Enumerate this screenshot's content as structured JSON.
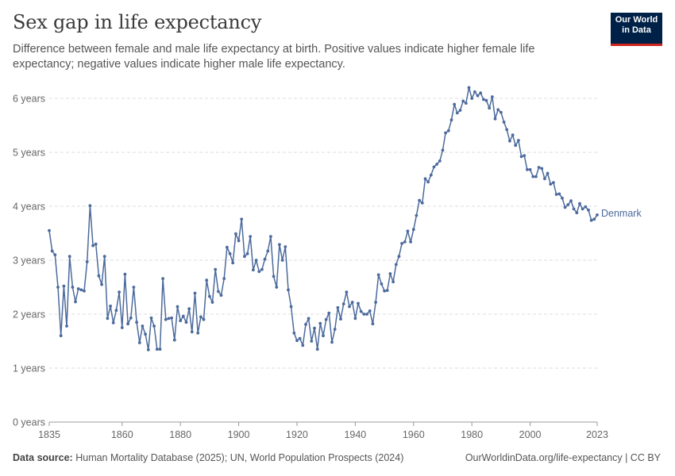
{
  "header": {
    "title": "Sex gap in life expectancy",
    "subtitle": "Difference between female and male life expectancy at birth. Positive values indicate higher female life expectancy; negative values indicate higher male life expectancy.",
    "logo_line1": "Our World",
    "logo_line2": "in Data"
  },
  "footer": {
    "source_label": "Data source:",
    "source_text": "Human Mortality Database (2025); UN, World Population Prospects (2024)",
    "credit": "OurWorldinData.org/life-expectancy | CC BY"
  },
  "colors": {
    "series": "#4c6a9c",
    "logo_bg": "#002147",
    "logo_accent": "#ce261e",
    "grid": "#dddddd",
    "axis_text": "#666666"
  },
  "chart_data": {
    "type": "line",
    "title": "Sex gap in life expectancy",
    "xlabel": "",
    "ylabel": "",
    "xlim": [
      1835,
      2023
    ],
    "ylim": [
      0,
      6
    ],
    "grid": "horizontal dashed",
    "legend": "inline label at line end",
    "x_ticks": [
      1835,
      1860,
      1880,
      1900,
      1920,
      1940,
      1960,
      1980,
      2000,
      2023
    ],
    "y_ticks": [
      {
        "value": 0,
        "label": "0 years"
      },
      {
        "value": 1,
        "label": "1 years"
      },
      {
        "value": 2,
        "label": "2 years"
      },
      {
        "value": 3,
        "label": "3 years"
      },
      {
        "value": 4,
        "label": "4 years"
      },
      {
        "value": 5,
        "label": "5 years"
      },
      {
        "value": 6,
        "label": "6 years"
      }
    ],
    "series": [
      {
        "name": "Denmark",
        "x": [
          1835,
          1836,
          1837,
          1838,
          1839,
          1840,
          1841,
          1842,
          1843,
          1844,
          1845,
          1846,
          1847,
          1848,
          1849,
          1850,
          1851,
          1852,
          1853,
          1854,
          1855,
          1856,
          1857,
          1858,
          1859,
          1860,
          1861,
          1862,
          1863,
          1864,
          1865,
          1866,
          1867,
          1868,
          1869,
          1870,
          1871,
          1872,
          1873,
          1874,
          1875,
          1876,
          1877,
          1878,
          1879,
          1880,
          1881,
          1882,
          1883,
          1884,
          1885,
          1886,
          1887,
          1888,
          1889,
          1890,
          1891,
          1892,
          1893,
          1894,
          1895,
          1896,
          1897,
          1898,
          1899,
          1900,
          1901,
          1902,
          1903,
          1904,
          1905,
          1906,
          1907,
          1908,
          1909,
          1910,
          1911,
          1912,
          1913,
          1914,
          1915,
          1916,
          1917,
          1918,
          1919,
          1920,
          1921,
          1922,
          1923,
          1924,
          1925,
          1926,
          1927,
          1928,
          1929,
          1930,
          1931,
          1932,
          1933,
          1934,
          1935,
          1936,
          1937,
          1938,
          1939,
          1940,
          1941,
          1942,
          1943,
          1944,
          1945,
          1946,
          1947,
          1948,
          1949,
          1950,
          1951,
          1952,
          1953,
          1954,
          1955,
          1956,
          1957,
          1958,
          1959,
          1960,
          1961,
          1962,
          1963,
          1964,
          1965,
          1966,
          1967,
          1968,
          1969,
          1970,
          1971,
          1972,
          1973,
          1974,
          1975,
          1976,
          1977,
          1978,
          1979,
          1980,
          1981,
          1982,
          1983,
          1984,
          1985,
          1986,
          1987,
          1988,
          1989,
          1990,
          1991,
          1992,
          1993,
          1994,
          1995,
          1996,
          1997,
          1998,
          1999,
          2000,
          2001,
          2002,
          2003,
          2004,
          2005,
          2006,
          2007,
          2008,
          2009,
          2010,
          2011,
          2012,
          2013,
          2014,
          2015,
          2016,
          2017,
          2018,
          2019,
          2020,
          2021,
          2022,
          2023
        ],
        "values": [
          3.55,
          3.17,
          3.1,
          2.5,
          1.6,
          2.52,
          1.78,
          3.07,
          2.5,
          2.23,
          2.47,
          2.45,
          2.43,
          2.97,
          4.01,
          3.27,
          3.3,
          2.71,
          2.55,
          3.07,
          1.92,
          2.15,
          1.84,
          2.07,
          2.41,
          1.75,
          2.74,
          1.82,
          1.93,
          2.5,
          1.85,
          1.47,
          1.78,
          1.63,
          1.34,
          1.93,
          1.78,
          1.35,
          1.35,
          2.66,
          1.9,
          1.92,
          1.93,
          1.52,
          2.14,
          1.88,
          1.96,
          1.85,
          2.1,
          1.67,
          2.39,
          1.65,
          1.95,
          1.9,
          2.63,
          2.33,
          2.22,
          2.83,
          2.42,
          2.35,
          2.66,
          3.24,
          3.12,
          2.95,
          3.49,
          3.36,
          3.76,
          3.07,
          3.12,
          3.44,
          2.82,
          3.0,
          2.79,
          2.83,
          3.02,
          3.17,
          3.44,
          2.7,
          2.5,
          3.29,
          3.0,
          3.25,
          2.45,
          2.14,
          1.65,
          1.51,
          1.55,
          1.42,
          1.81,
          1.92,
          1.5,
          1.74,
          1.35,
          1.83,
          1.6,
          1.9,
          2.02,
          1.48,
          1.72,
          2.12,
          1.91,
          2.19,
          2.41,
          2.14,
          2.22,
          1.92,
          2.2,
          2.05,
          2.0,
          2.0,
          2.06,
          1.82,
          2.22,
          2.73,
          2.56,
          2.43,
          2.44,
          2.75,
          2.6,
          2.92,
          3.07,
          3.31,
          3.34,
          3.54,
          3.34,
          3.57,
          3.83,
          4.11,
          4.06,
          4.51,
          4.45,
          4.58,
          4.73,
          4.78,
          4.84,
          5.04,
          5.36,
          5.4,
          5.6,
          5.89,
          5.73,
          5.78,
          5.95,
          5.91,
          6.2,
          6.0,
          6.12,
          6.05,
          6.1,
          5.98,
          5.96,
          5.82,
          6.03,
          5.62,
          5.79,
          5.74,
          5.56,
          5.42,
          5.21,
          5.32,
          5.13,
          5.22,
          4.92,
          4.94,
          4.68,
          4.68,
          4.55,
          4.55,
          4.72,
          4.7,
          4.51,
          4.61,
          4.41,
          4.44,
          4.22,
          4.23,
          4.15,
          3.98,
          4.03,
          4.1,
          3.95,
          3.88,
          4.05,
          3.95,
          3.99,
          3.93,
          3.74,
          3.76,
          3.84
        ]
      }
    ]
  }
}
